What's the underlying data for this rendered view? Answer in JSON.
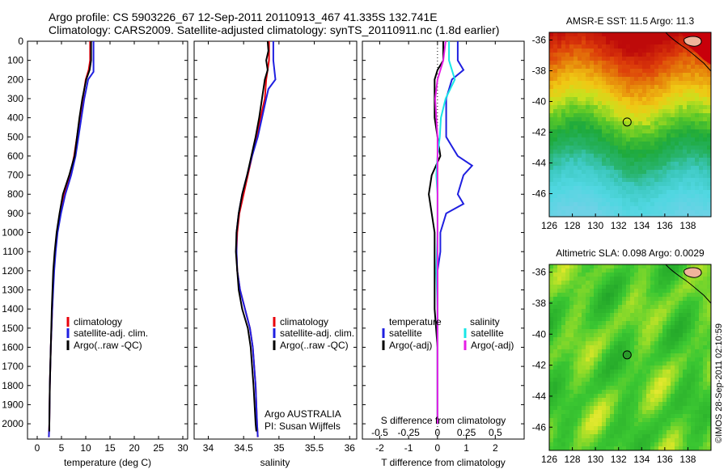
{
  "figure": {
    "title_line1": "Argo profile: CS 5903226_67 12-Sep-2011 20110913_467 41.335S 132.741E",
    "title_line2": "Climatology: CARS2009. Satellite-adjusted climatology: synTS_20110911.nc (1.8d earlier)",
    "credit_line1": "Argo AUSTRALIA",
    "credit_line2": "PI: Susan Wijffels",
    "stamp": "©IMOS 28-Sep-2011 02:10:59"
  },
  "colors": {
    "climatology": "#e8000b",
    "satellite": "#1f1fe0",
    "argo": "#000000",
    "salinity_satellite": "#18e6e6",
    "salinity_argo": "#e61ee6"
  },
  "chart_data": [
    {
      "type": "line",
      "panel": "temperature",
      "xlabel": "temperature (deg C)",
      "xlim": [
        -2,
        31
      ],
      "xticks": [
        0,
        5,
        10,
        15,
        20,
        25,
        30
      ],
      "ylim": [
        2080,
        0
      ],
      "yticks": [
        0,
        100,
        200,
        300,
        400,
        500,
        600,
        700,
        800,
        900,
        1000,
        1100,
        1200,
        1300,
        1400,
        1500,
        1600,
        1700,
        1800,
        1900,
        2000
      ],
      "legend": [
        "climatology",
        "satellite-adj. clim.",
        "Argo(..raw -QC)"
      ],
      "series": [
        {
          "name": "climatology",
          "color_key": "climatology",
          "depth": [
            0,
            100,
            150,
            200,
            300,
            400,
            500,
            600,
            700,
            800,
            900,
            1000,
            1100,
            1200,
            1400,
            1600,
            1800,
            2000,
            2070
          ],
          "values": [
            10.9,
            10.9,
            10.6,
            10.0,
            9.4,
            8.8,
            8.2,
            7.6,
            6.8,
            5.6,
            4.7,
            4.1,
            3.7,
            3.4,
            3.1,
            2.8,
            2.6,
            2.5,
            2.4
          ]
        },
        {
          "name": "satellite-adj. clim.",
          "color_key": "satellite",
          "depth": [
            0,
            100,
            160,
            200,
            300,
            400,
            500,
            600,
            700,
            800,
            900,
            1000,
            1100,
            1200,
            1400,
            1600,
            1800,
            2000,
            2070
          ],
          "values": [
            11.6,
            11.6,
            11.6,
            10.5,
            9.7,
            9.1,
            8.5,
            7.9,
            7.0,
            5.8,
            4.9,
            4.2,
            3.8,
            3.5,
            3.1,
            2.8,
            2.6,
            2.5,
            2.4
          ]
        },
        {
          "name": "Argo(..raw -QC)",
          "color_key": "argo",
          "depth": [
            0,
            100,
            150,
            200,
            300,
            400,
            500,
            600,
            700,
            800,
            900,
            1000,
            1100,
            1200,
            1400,
            1600,
            1800,
            2000,
            2040
          ],
          "values": [
            11.1,
            11.1,
            10.8,
            10.1,
            9.3,
            8.7,
            8.2,
            7.7,
            6.6,
            5.3,
            4.6,
            4.0,
            3.6,
            3.3,
            3.0,
            2.8,
            2.6,
            2.5,
            2.5
          ]
        }
      ]
    },
    {
      "type": "line",
      "panel": "salinity",
      "xlabel": "salinity",
      "xlim": [
        33.8,
        36.1
      ],
      "xticks": [
        34,
        34.5,
        35,
        35.5,
        36
      ],
      "ylim": [
        2080,
        0
      ],
      "legend": [
        "climatology",
        "satellite-adj. clim.",
        "Argo(..raw -QC)"
      ],
      "series": [
        {
          "name": "climatology",
          "color_key": "climatology",
          "depth": [
            0,
            100,
            200,
            300,
            400,
            500,
            600,
            700,
            800,
            900,
            1000,
            1100,
            1200,
            1300,
            1400,
            1500,
            1600,
            1800,
            2000,
            2070
          ],
          "values": [
            34.86,
            34.86,
            34.82,
            34.8,
            34.74,
            34.69,
            34.62,
            34.56,
            34.5,
            34.44,
            34.41,
            34.4,
            34.41,
            34.45,
            34.52,
            34.59,
            34.63,
            34.67,
            34.69,
            34.7
          ]
        },
        {
          "name": "satellite-adj. clim.",
          "color_key": "satellite",
          "depth": [
            0,
            100,
            200,
            250,
            300,
            400,
            500,
            600,
            700,
            800,
            900,
            1000,
            1100,
            1200,
            1300,
            1400,
            1500,
            1600,
            1800,
            2000,
            2070
          ],
          "values": [
            34.92,
            34.92,
            34.95,
            34.85,
            34.82,
            34.76,
            34.7,
            34.62,
            34.55,
            34.48,
            34.43,
            34.4,
            34.4,
            34.41,
            34.45,
            34.52,
            34.59,
            34.63,
            34.67,
            34.69,
            34.7
          ]
        },
        {
          "name": "Argo(..raw -QC)",
          "color_key": "argo",
          "depth": [
            0,
            50,
            100,
            150,
            200,
            300,
            400,
            500,
            600,
            700,
            800,
            900,
            1000,
            1100,
            1200,
            1300,
            1400,
            1500,
            1600,
            1800,
            2000,
            2040
          ],
          "values": [
            34.84,
            34.85,
            34.82,
            34.84,
            34.8,
            34.76,
            34.72,
            34.67,
            34.61,
            34.55,
            34.48,
            34.43,
            34.4,
            34.39,
            34.41,
            34.43,
            34.48,
            34.56,
            34.6,
            34.64,
            34.67,
            34.68
          ]
        }
      ]
    },
    {
      "type": "line",
      "panel": "difference",
      "xlabel": "T difference from climatology",
      "xlabel_top": "S difference from climatology",
      "xlim": [
        -2.6,
        3.0
      ],
      "xticks": [
        -2,
        -1,
        0,
        1,
        2
      ],
      "xlim_s": [
        -0.65,
        0.75
      ],
      "xticks_s": [
        -0.5,
        -0.25,
        0,
        0.25,
        0.5
      ],
      "ylim": [
        2080,
        0
      ],
      "legend_temperature": {
        "heading": "temperature",
        "entries": [
          "satellite",
          "Argo(-adj)"
        ]
      },
      "legend_salinity": {
        "heading": "salinity",
        "entries": [
          "satellite",
          "Argo(-adj)"
        ]
      },
      "series": [
        {
          "name": "satellite",
          "group": "temperature",
          "color_key": "satellite",
          "depth": [
            0,
            100,
            150,
            200,
            300,
            400,
            500,
            550,
            600,
            650,
            700,
            750,
            800,
            850,
            900,
            1000,
            1100,
            1200,
            1400,
            1600,
            1800,
            2000
          ],
          "values": [
            0.7,
            0.7,
            0.9,
            0.5,
            0.3,
            0.3,
            0.3,
            0.5,
            0.7,
            1.2,
            0.9,
            0.8,
            0.7,
            0.9,
            0.3,
            0.1,
            0.1,
            0.0,
            0.0,
            0.0,
            0.0,
            0.0
          ]
        },
        {
          "name": "Argo(-adj)",
          "group": "temperature",
          "color_key": "argo",
          "depth": [
            0,
            100,
            150,
            200,
            300,
            400,
            500,
            600,
            700,
            800,
            900,
            1000,
            1100,
            1200,
            1400,
            1600,
            1800,
            2000
          ],
          "values": [
            0.2,
            0.2,
            0.0,
            -0.1,
            -0.1,
            -0.1,
            0.0,
            0.1,
            -0.2,
            -0.3,
            -0.2,
            -0.1,
            -0.1,
            -0.1,
            -0.1,
            0.0,
            0.0,
            0.0
          ]
        },
        {
          "name": "satellite",
          "group": "salinity",
          "color_key": "salinity_satellite",
          "depth": [
            0,
            100,
            200,
            300,
            400,
            500,
            600,
            700,
            800,
            900,
            1000,
            1200,
            1400,
            1600,
            1800,
            2000
          ],
          "values": [
            0.1,
            0.1,
            0.15,
            0.07,
            0.03,
            0.02,
            0.0,
            -0.01,
            0.0,
            0.0,
            0.0,
            -0.01,
            0.0,
            0.0,
            0.0,
            0.0
          ]
        },
        {
          "name": "Argo(-adj)",
          "group": "salinity",
          "color_key": "salinity_argo",
          "depth": [
            0,
            100,
            200,
            300,
            400,
            500,
            600,
            700,
            800,
            900,
            1000,
            1200,
            1400,
            1600,
            1800,
            2000
          ],
          "values": [
            0.07,
            0.05,
            0.0,
            -0.02,
            -0.01,
            0.0,
            0.0,
            0.0,
            0.0,
            0.0,
            0.0,
            0.0,
            0.0,
            0.0,
            0.0,
            0.0
          ]
        }
      ]
    },
    {
      "type": "heatmap",
      "panel": "map-sst",
      "title": "AMSR-E SST: 11.5 Argo: 11.3",
      "xlim": [
        126,
        140
      ],
      "ylim": [
        -47.5,
        -35.5
      ],
      "xticks": [
        126,
        128,
        130,
        132,
        134,
        136,
        138
      ],
      "yticks": [
        -36,
        -38,
        -40,
        -42,
        -44,
        -46
      ],
      "marker": {
        "lon": 132.741,
        "lat": -41.335
      }
    },
    {
      "type": "heatmap",
      "panel": "map-sla",
      "title": "Altimetric SLA: 0.098 Argo: 0.0029",
      "xlim": [
        126,
        140
      ],
      "ylim": [
        -47.5,
        -35.5
      ],
      "xticks": [
        126,
        128,
        130,
        132,
        134,
        136,
        138
      ],
      "yticks": [
        -36,
        -38,
        -40,
        -42,
        -44,
        -46
      ],
      "marker": {
        "lon": 132.741,
        "lat": -41.335
      }
    }
  ]
}
